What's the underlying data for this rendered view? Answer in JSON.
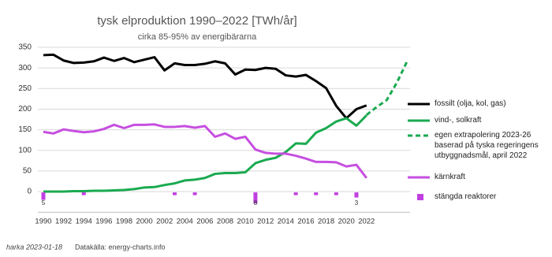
{
  "chart_data": {
    "type": "line",
    "title": "tysk elproduktion 1990–2022 [TWh/år]",
    "subtitle": "cirka 85-95% av energibärarna",
    "x": [
      1990,
      1991,
      1992,
      1993,
      1994,
      1995,
      1996,
      1997,
      1998,
      1999,
      2000,
      2001,
      2002,
      2003,
      2004,
      2005,
      2006,
      2007,
      2008,
      2009,
      2010,
      2011,
      2012,
      2013,
      2014,
      2015,
      2016,
      2017,
      2018,
      2019,
      2020,
      2021,
      2022
    ],
    "xlim": [
      1990,
      2026
    ],
    "xticks": [
      1990,
      1992,
      1994,
      1996,
      1998,
      2000,
      2002,
      2004,
      2006,
      2008,
      2010,
      2012,
      2014,
      2016,
      2018,
      2020,
      2022
    ],
    "ylim": [
      -50,
      350
    ],
    "yticks": [
      0,
      50,
      100,
      150,
      200,
      250,
      300,
      350
    ],
    "grid": true,
    "series": [
      {
        "name": "fossilt (olja, kol, gas)",
        "color": "#000000",
        "style": "solid",
        "values": [
          331,
          332,
          318,
          312,
          313,
          316,
          325,
          317,
          324,
          314,
          320,
          326,
          294,
          311,
          307,
          307,
          310,
          316,
          311,
          284,
          296,
          295,
          300,
          298,
          282,
          279,
          283,
          268,
          251,
          208,
          178,
          200,
          209
        ]
      },
      {
        "name": "vind-, solkraft",
        "color": "#1aaa50",
        "style": "solid",
        "values": [
          0,
          0,
          0,
          1,
          1,
          2,
          2,
          3,
          4,
          6,
          10,
          11,
          16,
          20,
          27,
          29,
          33,
          43,
          45,
          45,
          47,
          69,
          77,
          82,
          96,
          117,
          116,
          143,
          154,
          170,
          178,
          160,
          185
        ]
      },
      {
        "name": "egen extrapolering 2023-26\nbaserad på tyska regeringens\nutbyggnadsmål, april 2022",
        "color": "#1aaa50",
        "style": "dashed",
        "x": [
          2022,
          2023,
          2024,
          2025,
          2026
        ],
        "values": [
          186,
          205,
          222,
          264,
          315
        ]
      },
      {
        "name": "kärnkraft",
        "color": "#c64fe0",
        "style": "solid",
        "values": [
          145,
          141,
          151,
          147,
          144,
          146,
          152,
          162,
          154,
          162,
          162,
          163,
          157,
          157,
          159,
          155,
          159,
          133,
          141,
          128,
          133,
          102,
          94,
          92,
          92,
          87,
          80,
          72,
          72,
          71,
          61,
          65,
          33
        ]
      },
      {
        "name": "stängda reaktorer",
        "color": "#c040e0",
        "style": "bars",
        "x": [
          1990,
          1994,
          2003,
          2005,
          2011,
          2015,
          2017,
          2019,
          2021
        ],
        "values": [
          5,
          1,
          1,
          1,
          8,
          1,
          1,
          1,
          3
        ],
        "value_labels": [
          "5",
          null,
          null,
          null,
          "8",
          null,
          null,
          null,
          "3"
        ]
      }
    ],
    "footer": {
      "author": "harka 2023-01-18",
      "source": "Datakälla: energy-charts.info"
    }
  }
}
